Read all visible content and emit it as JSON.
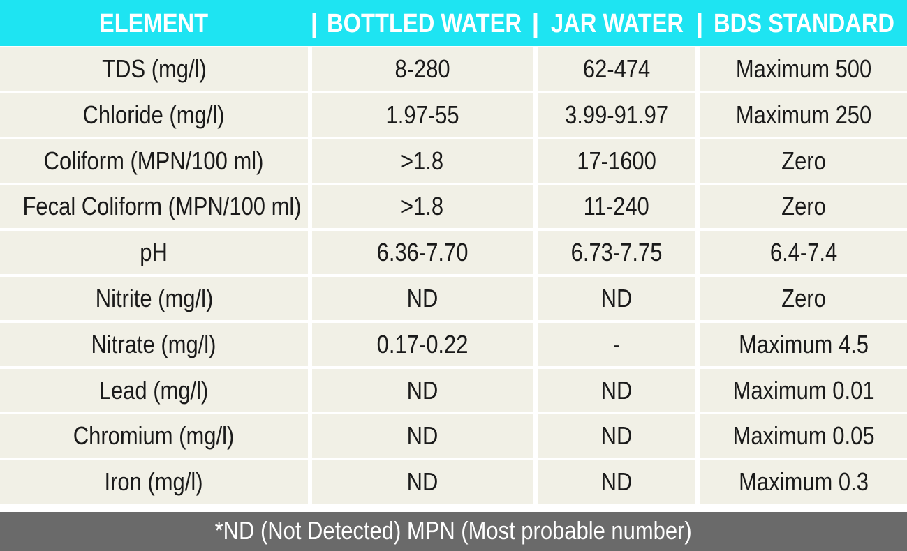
{
  "table": {
    "headers": [
      "ELEMENT",
      "BOTTLED WATER",
      "JAR WATER",
      "BDS STANDARD"
    ],
    "separator": "|",
    "rows": [
      [
        "TDS (mg/l)",
        "8-280",
        "62-474",
        "Maximum 500"
      ],
      [
        "Chloride (mg/l)",
        "1.97-55",
        "3.99-91.97",
        "Maximum 250"
      ],
      [
        "Coliform (MPN/100 ml)",
        ">1.8",
        "17-1600",
        "Zero"
      ],
      [
        "Fecal Coliform (MPN/100 ml)",
        ">1.8",
        "11-240",
        "Zero"
      ],
      [
        "pH",
        "6.36-7.70",
        "6.73-7.75",
        "6.4-7.4"
      ],
      [
        "Nitrite  (mg/l)",
        "ND",
        "ND",
        "Zero"
      ],
      [
        "Nitrate (mg/l)",
        "0.17-0.22",
        "-",
        "Maximum 4.5"
      ],
      [
        "Lead (mg/l)",
        "ND",
        "ND",
        "Maximum 0.01"
      ],
      [
        "Chromium (mg/l)",
        "ND",
        "ND",
        "Maximum 0.05"
      ],
      [
        "Iron (mg/l)",
        "ND",
        "ND",
        "Maximum 0.3"
      ]
    ],
    "footnote": "*ND (Not Detected) MPN (Most probable number)"
  },
  "colors": {
    "header_bg": "#1ee4f2",
    "cell_bg": "#f1f0e6",
    "footer_bg": "#6a6a6a"
  }
}
